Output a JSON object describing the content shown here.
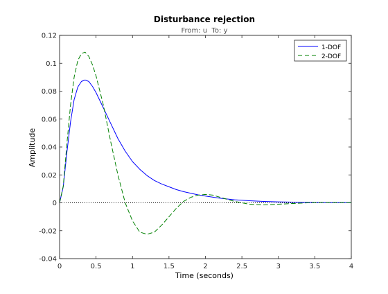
{
  "chart_data": {
    "type": "line",
    "title": "Disturbance rejection",
    "subtitle": "From: u  To: y",
    "xlabel": "Time (seconds)",
    "ylabel": "Amplitude",
    "xlim": [
      0,
      4
    ],
    "ylim": [
      -0.04,
      0.12
    ],
    "x_ticks": [
      0,
      0.5,
      1,
      1.5,
      2,
      2.5,
      3,
      3.5,
      4
    ],
    "x_tick_labels": [
      "0",
      "0.5",
      "1",
      "1.5",
      "2",
      "2.5",
      "3",
      "3.5",
      "4"
    ],
    "y_ticks": [
      -0.04,
      -0.02,
      0,
      0.02,
      0.04,
      0.06,
      0.08,
      0.1,
      0.12
    ],
    "y_tick_labels": [
      "-0.04",
      "-0.02",
      "0",
      "0.02",
      "0.04",
      "0.06",
      "0.08",
      "0.1",
      "0.12"
    ],
    "grid": false,
    "legend_position": "top-right",
    "reference_line": {
      "y": 0,
      "style": "dotted",
      "color": "#000000"
    },
    "series": [
      {
        "name": "1-DOF",
        "color": "#0000ff",
        "style": "solid",
        "x": [
          0,
          0.05,
          0.1,
          0.15,
          0.2,
          0.25,
          0.3,
          0.35,
          0.4,
          0.45,
          0.5,
          0.6,
          0.7,
          0.8,
          0.9,
          1.0,
          1.1,
          1.2,
          1.3,
          1.4,
          1.5,
          1.6,
          1.7,
          1.8,
          1.9,
          2.0,
          2.2,
          2.4,
          2.6,
          2.8,
          3.0,
          3.2,
          3.4,
          3.6,
          3.8,
          4.0
        ],
        "y": [
          0,
          0.0115,
          0.036,
          0.058,
          0.074,
          0.083,
          0.087,
          0.088,
          0.087,
          0.0835,
          0.079,
          0.068,
          0.057,
          0.046,
          0.037,
          0.0295,
          0.024,
          0.0195,
          0.016,
          0.0135,
          0.0115,
          0.0095,
          0.008,
          0.0068,
          0.0057,
          0.0048,
          0.0033,
          0.0022,
          0.0015,
          0.001,
          0.0007,
          0.0005,
          0.0003,
          0.0002,
          0.0001,
          0.0001
        ]
      },
      {
        "name": "2-DOF",
        "color": "#008000",
        "style": "dashed",
        "x": [
          0,
          0.05,
          0.1,
          0.15,
          0.2,
          0.25,
          0.3,
          0.35,
          0.4,
          0.45,
          0.5,
          0.6,
          0.7,
          0.8,
          0.9,
          1.0,
          1.1,
          1.2,
          1.3,
          1.4,
          1.5,
          1.6,
          1.7,
          1.8,
          1.9,
          2.0,
          2.1,
          2.2,
          2.3,
          2.4,
          2.6,
          2.8,
          3.0,
          3.2,
          3.4,
          3.6,
          3.8,
          4.0
        ],
        "y": [
          0,
          0.012,
          0.042,
          0.07,
          0.09,
          0.102,
          0.107,
          0.108,
          0.105,
          0.099,
          0.091,
          0.07,
          0.044,
          0.02,
          0.0,
          -0.013,
          -0.021,
          -0.0225,
          -0.021,
          -0.016,
          -0.01,
          -0.004,
          0.001,
          0.004,
          0.0055,
          0.006,
          0.0055,
          0.004,
          0.0025,
          0.001,
          -0.001,
          -0.0015,
          -0.001,
          -0.0005,
          0.0,
          0.0003,
          0.0002,
          0.0
        ]
      }
    ]
  }
}
